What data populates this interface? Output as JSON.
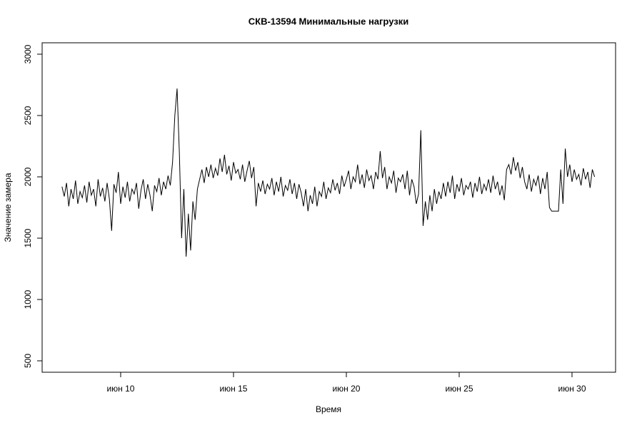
{
  "chart_data": {
    "type": "line",
    "title": "СКВ-13594 Минимальные нагрузки",
    "x_label": "Время",
    "y_label": "Значение замера",
    "xlim": [
      6.52,
      31.93
    ],
    "ylim": [
      407,
      3093
    ],
    "xticks": [
      {
        "value": 10,
        "label": "июн 10"
      },
      {
        "value": 15,
        "label": "июн 15"
      },
      {
        "value": 20,
        "label": "июн 20"
      },
      {
        "value": 25,
        "label": "июн 25"
      },
      {
        "value": 30,
        "label": "июн 30"
      }
    ],
    "yticks": [
      500,
      1000,
      1500,
      2000,
      2500,
      3000
    ],
    "grid": false,
    "x": [
      7.4,
      7.5,
      7.6,
      7.7,
      7.8,
      7.9,
      8.0,
      8.1,
      8.2,
      8.3,
      8.4,
      8.5,
      8.6,
      8.7,
      8.8,
      8.9,
      9.0,
      9.1,
      9.2,
      9.3,
      9.4,
      9.5,
      9.6,
      9.7,
      9.8,
      9.9,
      10.0,
      10.1,
      10.2,
      10.3,
      10.4,
      10.5,
      10.6,
      10.7,
      10.8,
      10.9,
      11.0,
      11.1,
      11.2,
      11.3,
      11.4,
      11.5,
      11.6,
      11.7,
      11.8,
      11.9,
      12.0,
      12.1,
      12.2,
      12.3,
      12.4,
      12.5,
      12.6,
      12.7,
      12.8,
      12.9,
      13.0,
      13.1,
      13.2,
      13.3,
      13.4,
      13.5,
      13.6,
      13.7,
      13.8,
      13.9,
      14.0,
      14.1,
      14.2,
      14.3,
      14.4,
      14.5,
      14.6,
      14.7,
      14.8,
      14.9,
      15.0,
      15.1,
      15.2,
      15.3,
      15.4,
      15.5,
      15.6,
      15.7,
      15.8,
      15.9,
      16.0,
      16.1,
      16.2,
      16.3,
      16.4,
      16.5,
      16.6,
      16.7,
      16.8,
      16.9,
      17.0,
      17.1,
      17.2,
      17.3,
      17.4,
      17.5,
      17.6,
      17.7,
      17.8,
      17.9,
      18.0,
      18.1,
      18.2,
      18.3,
      18.4,
      18.5,
      18.6,
      18.7,
      18.8,
      18.9,
      19.0,
      19.1,
      19.2,
      19.3,
      19.4,
      19.5,
      19.6,
      19.7,
      19.8,
      19.9,
      20.0,
      20.1,
      20.2,
      20.3,
      20.4,
      20.5,
      20.6,
      20.7,
      20.8,
      20.9,
      21.0,
      21.1,
      21.2,
      21.3,
      21.4,
      21.5,
      21.6,
      21.7,
      21.8,
      21.9,
      22.0,
      22.1,
      22.2,
      22.3,
      22.4,
      22.5,
      22.6,
      22.7,
      22.8,
      22.9,
      23.0,
      23.1,
      23.2,
      23.3,
      23.4,
      23.5,
      23.6,
      23.7,
      23.8,
      23.9,
      24.0,
      24.1,
      24.2,
      24.3,
      24.4,
      24.5,
      24.6,
      24.7,
      24.8,
      24.9,
      25.0,
      25.1,
      25.2,
      25.3,
      25.4,
      25.5,
      25.6,
      25.7,
      25.8,
      25.9,
      26.0,
      26.1,
      26.2,
      26.3,
      26.4,
      26.5,
      26.6,
      26.7,
      26.8,
      26.9,
      27.0,
      27.1,
      27.2,
      27.3,
      27.4,
      27.5,
      27.6,
      27.7,
      27.8,
      27.9,
      28.0,
      28.1,
      28.2,
      28.3,
      28.4,
      28.5,
      28.6,
      28.7,
      28.8,
      28.9,
      29.0,
      29.1,
      29.2,
      29.3,
      29.4,
      29.5,
      29.6,
      29.7,
      29.8,
      29.9,
      30.0,
      30.1,
      30.2,
      30.3,
      30.4,
      30.5,
      30.6,
      30.7,
      30.8,
      30.9,
      31.0
    ],
    "series": [
      {
        "color": "#000000",
        "values": [
          1920,
          1840,
          1950,
          1760,
          1900,
          1820,
          1970,
          1780,
          1880,
          1830,
          1930,
          1790,
          1960,
          1850,
          1900,
          1760,
          1980,
          1840,
          1910,
          1800,
          1950,
          1820,
          1560,
          1940,
          1870,
          2040,
          1780,
          1920,
          1830,
          1960,
          1800,
          1900,
          1860,
          1950,
          1740,
          1890,
          1980,
          1820,
          1940,
          1850,
          1720,
          1930,
          1880,
          1990,
          1850,
          1960,
          1900,
          2010,
          1930,
          2120,
          2500,
          2720,
          2200,
          1500,
          1900,
          1350,
          1700,
          1400,
          1800,
          1650,
          1900,
          1980,
          2060,
          1950,
          2080,
          2000,
          2100,
          1990,
          2070,
          2010,
          2150,
          2040,
          2180,
          2020,
          2090,
          1970,
          2120,
          2030,
          2060,
          1980,
          2100,
          1960,
          2050,
          2130,
          1990,
          2080,
          1760,
          1950,
          1880,
          1970,
          1860,
          1940,
          1900,
          1990,
          1850,
          1960,
          1880,
          2000,
          1840,
          1930,
          1890,
          1980,
          1860,
          1950,
          1820,
          1940,
          1870,
          1760,
          1900,
          1720,
          1850,
          1780,
          1920,
          1760,
          1880,
          1840,
          1960,
          1820,
          1910,
          1870,
          1980,
          1890,
          1950,
          1860,
          2010,
          1920,
          1980,
          2050,
          1900,
          2000,
          1960,
          2100,
          1940,
          2020,
          1910,
          2060,
          1970,
          2010,
          1900,
          2040,
          1980,
          2210,
          1990,
          2080,
          1900,
          2000,
          1950,
          2050,
          1870,
          1990,
          1960,
          2020,
          1900,
          2050,
          1850,
          1980,
          1920,
          1780,
          1860,
          2380,
          1600,
          1800,
          1650,
          1850,
          1720,
          1900,
          1780,
          1880,
          1820,
          1950,
          1840,
          1960,
          1870,
          2010,
          1820,
          1940,
          1880,
          1990,
          1850,
          1930,
          1900,
          1960,
          1830,
          1950,
          1880,
          2000,
          1860,
          1940,
          1890,
          1980,
          1870,
          2010,
          1900,
          1960,
          1850,
          1930,
          1810,
          2060,
          2100,
          2020,
          2160,
          2050,
          2120,
          1990,
          2080,
          1960,
          1900,
          2020,
          1880,
          1980,
          1930,
          2010,
          1860,
          1990,
          1900,
          2040,
          1750,
          1720,
          1720,
          1720,
          1720,
          2060,
          1780,
          2230,
          2000,
          2100,
          1960,
          2060,
          1980,
          2020,
          1930,
          2070,
          1980,
          2040,
          1910,
          2060,
          2000
        ]
      }
    ]
  }
}
